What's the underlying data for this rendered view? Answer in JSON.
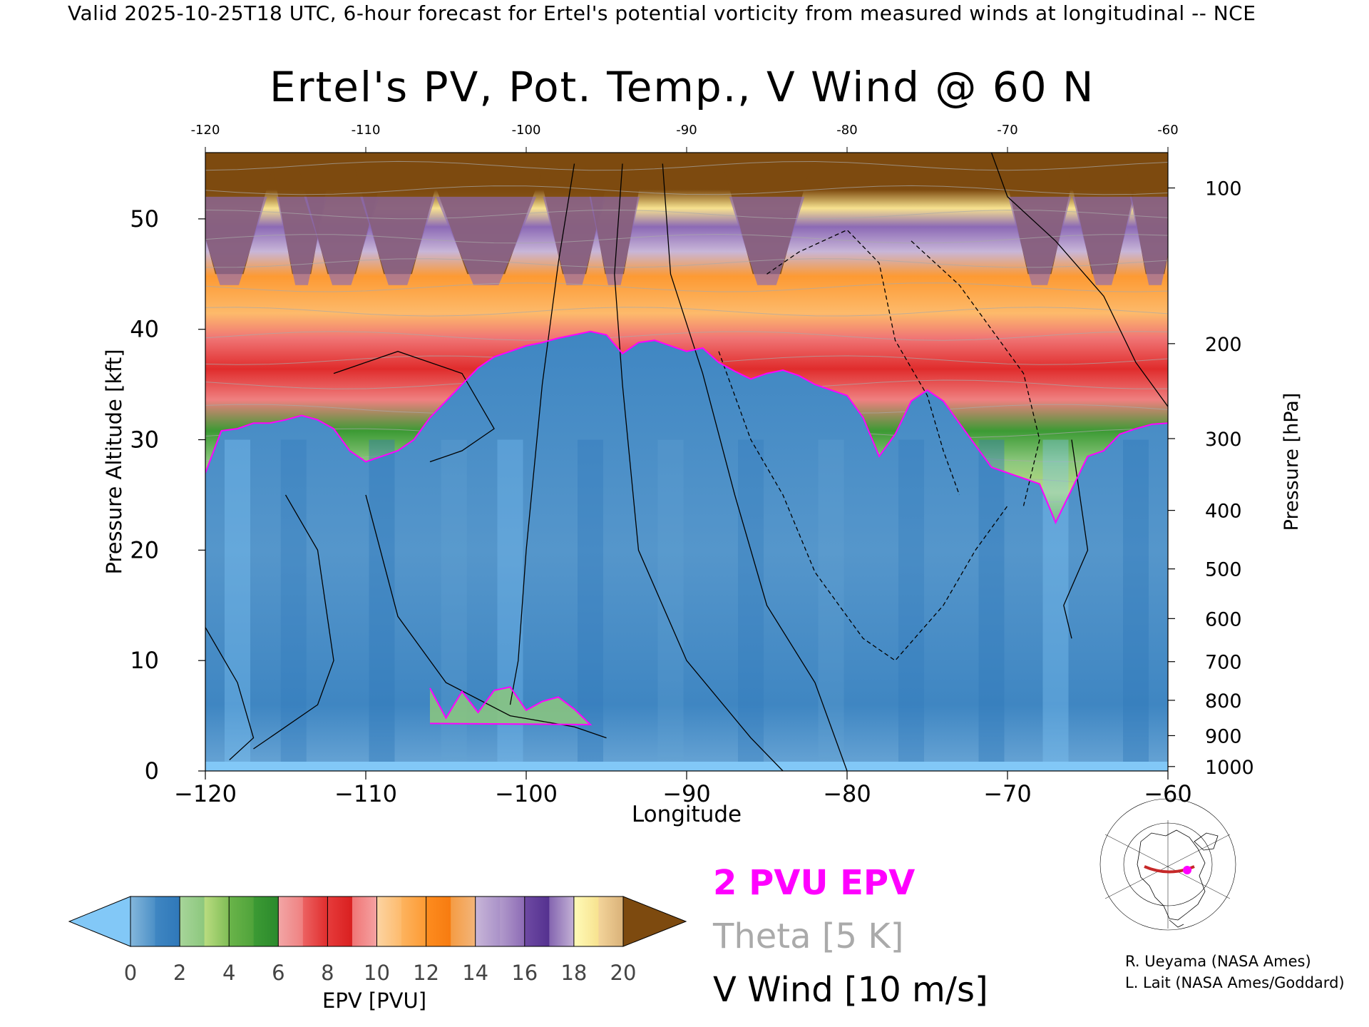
{
  "header": {
    "line": "Valid 2025-10-25T18 UTC, 6-hour forecast for Ertel's potential vorticity from measured winds at longitudinal -- NCE"
  },
  "chart_data": {
    "type": "heatmap",
    "title": "Ertel's PV, Pot. Temp., V Wind @ 60 N",
    "xlabel": "Longitude",
    "ylabel_left": "Pressure Altitude [kft]",
    "ylabel_right": "Pressure [hPa]",
    "xlim": [
      -120,
      -60
    ],
    "ylim_kft": [
      0,
      56
    ],
    "x_ticks_bottom": [
      "-120",
      "-110",
      "-100",
      "-90",
      "-80",
      "-70",
      "-60"
    ],
    "x_ticks_top": [
      "-120",
      "-110",
      "-100",
      "-90",
      "-80",
      "-70",
      "-60"
    ],
    "y_ticks_left": [
      "0",
      "10",
      "20",
      "30",
      "40",
      "50"
    ],
    "pressure_ticks": [
      {
        "label": "100",
        "kft": 52.8
      },
      {
        "label": "200",
        "kft": 38.7
      },
      {
        "label": "300",
        "kft": 30.1
      },
      {
        "label": "400",
        "kft": 23.6
      },
      {
        "label": "500",
        "kft": 18.3
      },
      {
        "label": "600",
        "kft": 13.8
      },
      {
        "label": "700",
        "kft": 9.9
      },
      {
        "label": "800",
        "kft": 6.4
      },
      {
        "label": "900",
        "kft": 3.2
      },
      {
        "label": "1000",
        "kft": 0.4
      }
    ],
    "tropopause_2pvu_kft": {
      "lon": [
        -120,
        -119,
        -118,
        -117,
        -116,
        -115,
        -114,
        -113,
        -112,
        -111,
        -110,
        -109,
        -108,
        -107,
        -106,
        -105,
        -104,
        -103,
        -102,
        -101,
        -100,
        -99,
        -98,
        -97,
        -96,
        -95,
        -94,
        -93,
        -92,
        -91,
        -90,
        -89,
        -88,
        -87,
        -86,
        -85,
        -84,
        -83,
        -82,
        -81,
        -80,
        -79,
        -78,
        -77,
        -76,
        -75,
        -74,
        -73,
        -72,
        -71,
        -70,
        -69,
        -68,
        -67,
        -66,
        -65,
        -64,
        -63,
        -62,
        -61,
        -60
      ],
      "kft": [
        27,
        30.8,
        31,
        31.5,
        31.5,
        31.8,
        32.2,
        31.8,
        31,
        29,
        28,
        28.5,
        29,
        30,
        32,
        33.5,
        35,
        36.5,
        37.5,
        38,
        38.5,
        38.8,
        39.2,
        39.5,
        39.8,
        39.5,
        37.8,
        38.8,
        39,
        38.5,
        38,
        38.3,
        37,
        36.2,
        35.5,
        36,
        36.3,
        35.8,
        35,
        34.5,
        34,
        32,
        28.5,
        30.5,
        33.5,
        34.5,
        33.5,
        31.5,
        29.5,
        27.5,
        27,
        26.5,
        26,
        22.5,
        25.5,
        28.5,
        29,
        30.5,
        31,
        31.4,
        31.5
      ]
    },
    "surface_anomaly_2pvu": {
      "lon": [
        -106,
        -105,
        -104,
        -103,
        -102,
        -101,
        -100,
        -99,
        -98,
        -97,
        -96,
        -106
      ],
      "kft": [
        7.5,
        4.8,
        7.2,
        5.3,
        7.3,
        7.6,
        5.5,
        6.3,
        6.7,
        5.6,
        4.2,
        4.3
      ]
    },
    "epv_colorbar": {
      "label": "EPV [PVU]",
      "tick_labels": [
        "0",
        "2",
        "4",
        "6",
        "8",
        "10",
        "12",
        "14",
        "16",
        "18",
        "20"
      ],
      "bins": [
        {
          "min": 0,
          "max": 1,
          "colors": [
            "#84b7dc",
            "#4b8fc6"
          ]
        },
        {
          "min": 1,
          "max": 2,
          "colors": [
            "#3f86c2",
            "#2f78b9"
          ]
        },
        {
          "min": 2,
          "max": 3,
          "colors": [
            "#a7d59a",
            "#8cc77d"
          ]
        },
        {
          "min": 3,
          "max": 4,
          "colors": [
            "#b9dc80",
            "#7fbd55"
          ]
        },
        {
          "min": 4,
          "max": 5,
          "colors": [
            "#6ab44a",
            "#4fa33a"
          ]
        },
        {
          "min": 5,
          "max": 6,
          "colors": [
            "#3c9a34",
            "#2b8a2c"
          ]
        },
        {
          "min": 6,
          "max": 7,
          "colors": [
            "#f2a6a6",
            "#ef8080"
          ]
        },
        {
          "min": 7,
          "max": 8,
          "colors": [
            "#ec6262",
            "#e02c2c"
          ]
        },
        {
          "min": 8,
          "max": 9,
          "colors": [
            "#e63b3b",
            "#d91f1f"
          ]
        },
        {
          "min": 9,
          "max": 10,
          "colors": [
            "#f07575",
            "#f5a3a3"
          ]
        },
        {
          "min": 10,
          "max": 11,
          "colors": [
            "#fcd4a3",
            "#fdba6b"
          ]
        },
        {
          "min": 11,
          "max": 12,
          "colors": [
            "#fdb35e",
            "#fd9a33"
          ]
        },
        {
          "min": 12,
          "max": 13,
          "colors": [
            "#fd8c1f",
            "#f77b10"
          ]
        },
        {
          "min": 13,
          "max": 14,
          "colors": [
            "#f49c44",
            "#f3b57a"
          ]
        },
        {
          "min": 14,
          "max": 15,
          "colors": [
            "#c8b6d8",
            "#a991c8"
          ]
        },
        {
          "min": 15,
          "max": 16,
          "colors": [
            "#b19acb",
            "#8c6ab5"
          ]
        },
        {
          "min": 16,
          "max": 17,
          "colors": [
            "#6e4aa3",
            "#54318f"
          ]
        },
        {
          "min": 17,
          "max": 18,
          "colors": [
            "#8465b0",
            "#c4b2d6"
          ]
        },
        {
          "min": 18,
          "max": 19,
          "colors": [
            "#fffbb8",
            "#f7e28f"
          ]
        },
        {
          "min": 19,
          "max": 20,
          "colors": [
            "#f3d49a",
            "#d9b178"
          ]
        }
      ],
      "under_color": "#82c8f7",
      "over_color": "#7d4a0f"
    },
    "colors": {
      "tropopause": "#ff00ff",
      "theta": "#aaaaaa",
      "vwind": "#000000",
      "troposphere_base": "#4a8dc4",
      "stratosphere_top": "#7d4a0f"
    }
  },
  "legend": {
    "pvu": "2 PVU EPV",
    "theta": "Theta [5 K]",
    "vwind": "V Wind [10 m/s]"
  },
  "map_inset": {
    "marker_color": "#ff00ff",
    "path_color": "#c62828"
  },
  "credits": {
    "line1": "R. Ueyama (NASA Ames)",
    "line2": "L. Lait (NASA Ames/Goddard)"
  }
}
